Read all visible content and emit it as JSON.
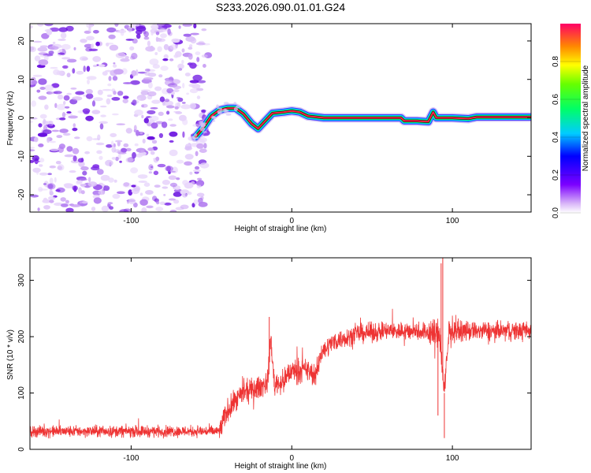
{
  "figure": {
    "title": "S233.2026.090.01.01.G24"
  },
  "chart_data": [
    {
      "type": "heatmap",
      "xlabel": "Height of straight line (km)",
      "ylabel": "Frequency (Hz)",
      "xlim": [
        -163,
        149
      ],
      "ylim": [
        -24.5,
        24.5
      ],
      "x_ticks": [
        -100,
        0,
        100
      ],
      "y_ticks": [
        -20,
        -10,
        0,
        10,
        20
      ],
      "noise_region_x": [
        -163,
        -52
      ],
      "ridge": {
        "description_points": [
          [
            -60,
            -5
          ],
          [
            -55,
            -2.5
          ],
          [
            -50,
            0.5
          ],
          [
            -45,
            2
          ],
          [
            -40,
            2.5
          ],
          [
            -35,
            2.5
          ],
          [
            -30,
            1
          ],
          [
            -25,
            -1.5
          ],
          [
            -21,
            -2.8
          ],
          [
            -17,
            -1
          ],
          [
            -12,
            1.2
          ],
          [
            -5,
            1.5
          ],
          [
            0,
            1.8
          ],
          [
            5,
            1.5
          ],
          [
            10,
            0.5
          ],
          [
            20,
            0
          ],
          [
            40,
            0
          ],
          [
            60,
            0
          ],
          [
            68,
            0
          ],
          [
            70,
            -0.8
          ],
          [
            78,
            -0.8
          ],
          [
            85,
            -1
          ],
          [
            88,
            1.5
          ],
          [
            90,
            0
          ],
          [
            100,
            0
          ],
          [
            110,
            -0.2
          ],
          [
            115,
            0.2
          ],
          [
            130,
            0.2
          ],
          [
            149,
            0.2
          ]
        ]
      },
      "colorbar": {
        "label": "Normalized spectral amplitude",
        "range": [
          0,
          1
        ],
        "ticks": [
          "0.0",
          "0.2",
          "0.4",
          "0.6",
          "0.8"
        ]
      }
    },
    {
      "type": "line",
      "xlabel": "Height of straight line (km)",
      "ylabel": "SNR (10 * v/v)",
      "xlim": [
        -163,
        149
      ],
      "ylim": [
        0,
        340
      ],
      "x_ticks": [
        -100,
        0,
        100
      ],
      "y_ticks": [
        0,
        100,
        200,
        300
      ],
      "series_color": "#ee3333",
      "trend": [
        [
          -163,
          32
        ],
        [
          -100,
          32
        ],
        [
          -45,
          32
        ],
        [
          -40,
          70
        ],
        [
          -30,
          100
        ],
        [
          -20,
          110
        ],
        [
          -15,
          120
        ],
        [
          -13,
          200
        ],
        [
          -11,
          115
        ],
        [
          -5,
          120
        ],
        [
          0,
          140
        ],
        [
          10,
          140
        ],
        [
          15,
          130
        ],
        [
          18,
          170
        ],
        [
          25,
          190
        ],
        [
          40,
          205
        ],
        [
          60,
          210
        ],
        [
          80,
          210
        ],
        [
          92,
          205
        ],
        [
          95,
          100
        ],
        [
          98,
          210
        ],
        [
          149,
          210
        ]
      ],
      "noise": [
        {
          "from": -163,
          "to": -45,
          "amp": 15
        },
        {
          "from": -45,
          "to": 20,
          "amp": 30
        },
        {
          "from": 20,
          "to": 85,
          "amp": 25
        },
        {
          "from": 85,
          "to": 100,
          "amp": 40
        },
        {
          "from": 100,
          "to": 149,
          "amp": 25
        }
      ],
      "spikes": [
        {
          "x": -14,
          "y": 235
        },
        {
          "x": 93,
          "y": 330
        },
        {
          "x": 94,
          "y": 340
        },
        {
          "x": 95,
          "y": 20
        },
        {
          "x": 91,
          "y": 60
        }
      ]
    }
  ]
}
